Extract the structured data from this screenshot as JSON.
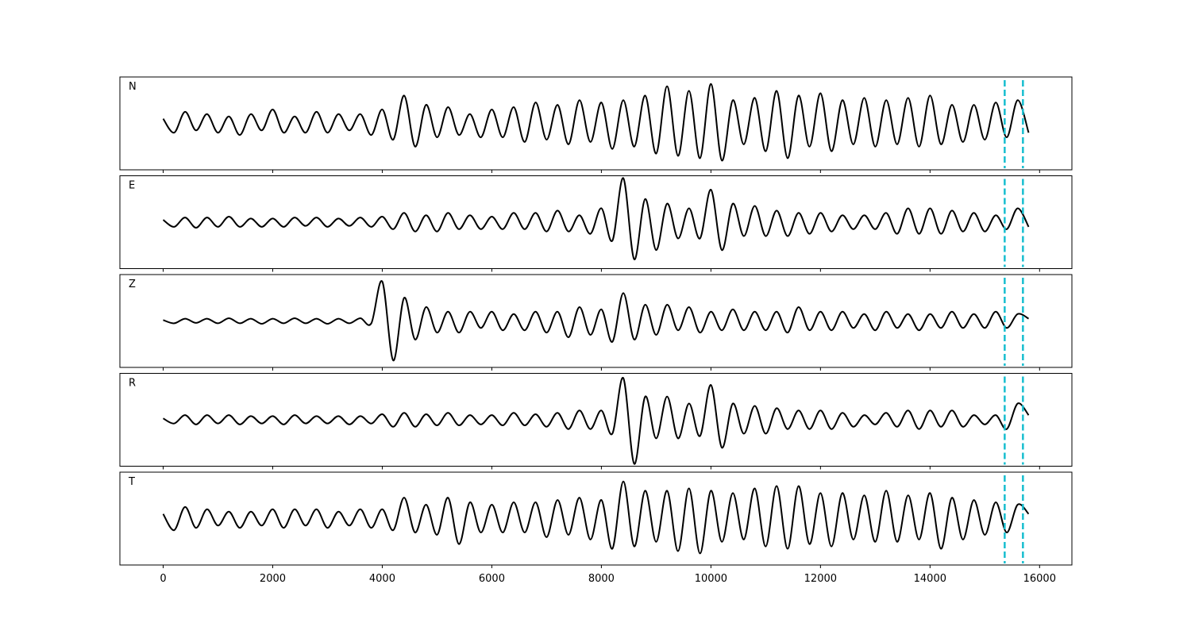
{
  "chart_data": {
    "type": "line",
    "x": [
      0,
      200,
      400,
      600,
      800,
      1000,
      1200,
      1400,
      1600,
      1800,
      2000,
      2200,
      2400,
      2600,
      2800,
      3000,
      3200,
      3400,
      3600,
      3800,
      4000,
      4200,
      4400,
      4600,
      4800,
      5000,
      5200,
      5400,
      5600,
      5800,
      6000,
      6200,
      6400,
      6600,
      6800,
      7000,
      7200,
      7400,
      7600,
      7800,
      8000,
      8200,
      8400,
      8600,
      8800,
      9000,
      9200,
      9400,
      9600,
      9800,
      10000,
      10200,
      10400,
      10600,
      10800,
      11000,
      11200,
      11400,
      11600,
      11800,
      12000,
      12200,
      12400,
      12600,
      12800,
      13000,
      13200,
      13400,
      13600,
      13800,
      14000,
      14200,
      14400,
      14600,
      14800,
      15000,
      15200,
      15400,
      15600,
      15800
    ],
    "xlim": [
      -790,
      16590
    ],
    "xticks": [
      0,
      2000,
      4000,
      6000,
      8000,
      10000,
      12000,
      14000,
      16000
    ],
    "ylim": [
      -1,
      1
    ],
    "color": "#000000",
    "vlines": [
      15363,
      15696
    ],
    "vline_color": "#17becf",
    "series": [
      {
        "name": "N",
        "values": [
          0.1,
          -0.2,
          0.25,
          -0.15,
          0.2,
          -0.2,
          0.15,
          -0.25,
          0.2,
          -0.15,
          0.3,
          -0.2,
          0.15,
          -0.2,
          0.25,
          -0.2,
          0.2,
          -0.15,
          0.2,
          -0.25,
          0.3,
          -0.35,
          0.6,
          -0.5,
          0.4,
          -0.3,
          0.35,
          -0.25,
          0.2,
          -0.3,
          0.3,
          -0.3,
          0.35,
          -0.4,
          0.45,
          -0.35,
          0.4,
          -0.45,
          0.5,
          -0.4,
          0.45,
          -0.55,
          0.5,
          -0.5,
          0.6,
          -0.65,
          0.8,
          -0.7,
          0.7,
          -0.75,
          0.85,
          -0.8,
          0.5,
          -0.45,
          0.55,
          -0.6,
          0.7,
          -0.75,
          0.6,
          -0.5,
          0.65,
          -0.6,
          0.5,
          -0.45,
          0.55,
          -0.5,
          0.5,
          -0.45,
          0.55,
          -0.5,
          0.6,
          -0.45,
          0.4,
          -0.4,
          0.4,
          -0.35,
          0.45,
          -0.3,
          0.5,
          -0.2
        ]
      },
      {
        "name": "E",
        "values": [
          0.05,
          -0.1,
          0.1,
          -0.12,
          0.1,
          -0.1,
          0.12,
          -0.1,
          0.08,
          -0.1,
          0.08,
          -0.1,
          0.1,
          -0.08,
          0.1,
          -0.1,
          0.08,
          -0.08,
          0.1,
          -0.1,
          0.12,
          -0.15,
          0.2,
          -0.2,
          0.15,
          -0.2,
          0.2,
          -0.15,
          0.15,
          -0.15,
          0.12,
          -0.15,
          0.2,
          -0.15,
          0.2,
          -0.2,
          0.25,
          -0.2,
          0.15,
          -0.25,
          0.3,
          -0.4,
          0.95,
          -0.8,
          0.5,
          -0.6,
          0.4,
          -0.35,
          0.3,
          -0.35,
          0.7,
          -0.6,
          0.4,
          -0.3,
          0.35,
          -0.3,
          0.25,
          -0.3,
          0.2,
          -0.25,
          0.2,
          -0.2,
          0.15,
          -0.15,
          0.15,
          -0.15,
          0.2,
          -0.25,
          0.3,
          -0.25,
          0.3,
          -0.25,
          0.25,
          -0.2,
          0.2,
          -0.2,
          0.15,
          -0.15,
          0.3,
          -0.1
        ]
      },
      {
        "name": "Z",
        "values": [
          0.02,
          -0.05,
          0.05,
          -0.04,
          0.05,
          -0.05,
          0.06,
          -0.05,
          0.05,
          -0.06,
          0.05,
          -0.05,
          0.06,
          -0.05,
          0.05,
          -0.06,
          0.05,
          -0.05,
          0.06,
          -0.05,
          0.85,
          -0.85,
          0.5,
          -0.4,
          0.3,
          -0.25,
          0.2,
          -0.25,
          0.2,
          -0.15,
          0.2,
          -0.2,
          0.15,
          -0.2,
          0.2,
          -0.25,
          0.2,
          -0.35,
          0.3,
          -0.3,
          0.25,
          -0.45,
          0.6,
          -0.4,
          0.35,
          -0.3,
          0.35,
          -0.2,
          0.3,
          -0.25,
          0.2,
          -0.2,
          0.25,
          -0.2,
          0.2,
          -0.2,
          0.2,
          -0.25,
          0.3,
          -0.2,
          0.2,
          -0.2,
          0.2,
          -0.15,
          0.15,
          -0.2,
          0.2,
          -0.15,
          0.15,
          -0.2,
          0.15,
          -0.15,
          0.2,
          -0.15,
          0.15,
          -0.15,
          0.2,
          -0.15,
          0.15,
          0.05
        ]
      },
      {
        "name": "R",
        "values": [
          0.03,
          -0.08,
          0.1,
          -0.1,
          0.1,
          -0.08,
          0.1,
          -0.1,
          0.08,
          -0.08,
          0.08,
          -0.1,
          0.1,
          -0.08,
          0.08,
          -0.08,
          0.08,
          -0.1,
          0.08,
          -0.08,
          0.12,
          -0.15,
          0.15,
          -0.15,
          0.12,
          -0.12,
          0.15,
          -0.12,
          0.1,
          -0.1,
          0.1,
          -0.12,
          0.15,
          -0.12,
          0.12,
          -0.15,
          0.15,
          -0.2,
          0.2,
          -0.2,
          0.2,
          -0.3,
          0.9,
          -0.95,
          0.5,
          -0.4,
          0.5,
          -0.4,
          0.35,
          -0.35,
          0.75,
          -0.6,
          0.35,
          -0.3,
          0.3,
          -0.3,
          0.25,
          -0.2,
          0.2,
          -0.2,
          0.2,
          -0.2,
          0.15,
          -0.15,
          0.1,
          -0.1,
          0.15,
          -0.15,
          0.2,
          -0.2,
          0.2,
          -0.15,
          0.2,
          -0.15,
          0.1,
          -0.1,
          0.1,
          -0.2,
          0.35,
          0.1
        ]
      },
      {
        "name": "T",
        "values": [
          0.1,
          -0.25,
          0.25,
          -0.2,
          0.2,
          -0.15,
          0.15,
          -0.2,
          0.15,
          -0.15,
          0.2,
          -0.2,
          0.2,
          -0.15,
          0.2,
          -0.2,
          0.15,
          -0.15,
          0.2,
          -0.2,
          0.2,
          -0.25,
          0.45,
          -0.3,
          0.3,
          -0.35,
          0.45,
          -0.55,
          0.35,
          -0.3,
          0.3,
          -0.3,
          0.35,
          -0.3,
          0.35,
          -0.4,
          0.4,
          -0.35,
          0.45,
          -0.45,
          0.4,
          -0.65,
          0.8,
          -0.6,
          0.6,
          -0.5,
          0.6,
          -0.7,
          0.65,
          -0.75,
          0.6,
          -0.5,
          0.55,
          -0.45,
          0.65,
          -0.6,
          0.7,
          -0.65,
          0.7,
          -0.55,
          0.55,
          -0.6,
          0.55,
          -0.45,
          0.5,
          -0.5,
          0.6,
          -0.5,
          0.5,
          -0.45,
          0.55,
          -0.65,
          0.45,
          -0.45,
          0.4,
          -0.35,
          0.35,
          -0.3,
          0.3,
          0.1
        ]
      }
    ]
  }
}
